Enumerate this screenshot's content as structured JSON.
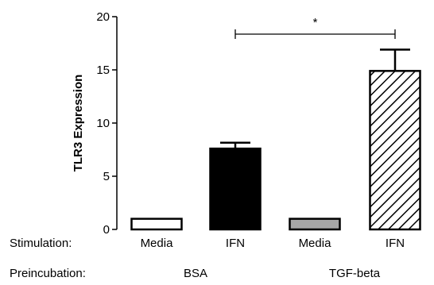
{
  "chart_data": {
    "type": "bar",
    "categories": [
      "Media",
      "IFN",
      "Media",
      "IFN"
    ],
    "values": [
      1.0,
      7.6,
      1.0,
      14.9
    ],
    "errors": [
      0,
      0.55,
      0,
      2.0
    ],
    "fills": [
      "#ffffff",
      "#000000",
      "#a6a6a6",
      "hatch"
    ],
    "ylabel": "TLR3 Expression",
    "ylim": [
      0,
      20
    ],
    "yticks": [
      "0",
      "5",
      "10",
      "15",
      "20"
    ],
    "row_labels": {
      "stimulation": "Stimulation:",
      "preincubation": "Preincubation:"
    },
    "groups": [
      "BSA",
      "TGF-beta"
    ],
    "significance": {
      "from_bar": 1,
      "to_bar": 3,
      "label": "*"
    },
    "grid": false
  }
}
